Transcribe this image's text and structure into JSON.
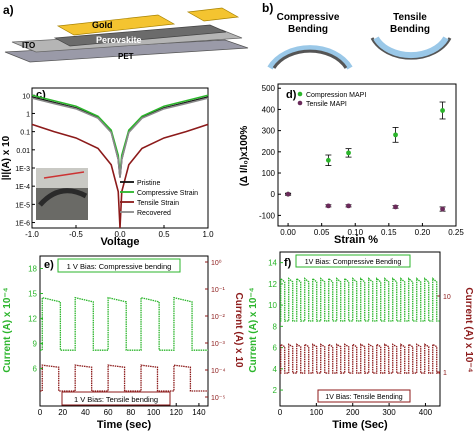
{
  "panels": {
    "a": {
      "letter": "a)",
      "layers": {
        "gold": "Gold",
        "perovskite": "Perovskite",
        "ito": "ITO",
        "pet": "PET"
      }
    },
    "b": {
      "letter": "b)",
      "compressive": [
        "Compressive",
        "Bending"
      ],
      "tensile": [
        "Tensile",
        "Bending"
      ]
    },
    "c": {
      "letter": "c)"
    },
    "d": {
      "letter": "d)"
    },
    "e": {
      "letter": "e)"
    },
    "f": {
      "letter": "f)"
    }
  },
  "colors": {
    "green": "#2bb52b",
    "maroon": "#8c1a1a",
    "gray": "#8a8a8a",
    "black": "#111111",
    "purple": "#6a2a5a",
    "gold": "#f4c430",
    "perovskite": "#6b6b6b",
    "ito": "#b5b5b5",
    "pet": "#9a9aa8"
  },
  "chart_data": [
    {
      "id": "c",
      "type": "line",
      "xlabel": "Voltage",
      "ylabel": "|I|(A) x 10",
      "x_ticks": [
        "-1.0",
        "-0.5",
        "0.0",
        "0.5",
        "1.0"
      ],
      "xlim": [
        -1.0,
        1.0
      ],
      "y_scale": "log",
      "y_ticks": [
        "1E-6",
        "1E-5",
        "1E-4",
        "1E-3",
        "0.01",
        "0.1",
        "1",
        "10"
      ],
      "ylim_exponent": [
        -6.3,
        1.4
      ],
      "legend": {
        "position": "bottom-right",
        "entries": [
          "Pristine",
          "Compressive Strain",
          "Tensile Strain",
          "Recovered"
        ]
      },
      "series": [
        {
          "name": "Pristine",
          "color": "black",
          "x": [
            -1.0,
            -0.75,
            -0.5,
            -0.25,
            -0.1,
            -0.02,
            0.0,
            0.02,
            0.1,
            0.25,
            0.5,
            0.75,
            1.0
          ],
          "y": [
            8.0,
            4.0,
            2.0,
            0.6,
            0.1,
            0.003,
            0.0003,
            0.003,
            0.1,
            0.6,
            2.0,
            4.0,
            8.0
          ]
        },
        {
          "name": "Compressive Strain",
          "color": "green",
          "x": [
            -1.0,
            -0.75,
            -0.5,
            -0.25,
            -0.1,
            -0.02,
            0.0,
            0.02,
            0.1,
            0.25,
            0.5,
            0.75,
            1.0
          ],
          "y": [
            10.0,
            5.0,
            2.5,
            0.7,
            0.12,
            0.005,
            0.0005,
            0.005,
            0.12,
            0.7,
            2.5,
            5.0,
            10.0
          ]
        },
        {
          "name": "Tensile Strain",
          "color": "maroon",
          "x": [
            -1.0,
            -0.75,
            -0.5,
            -0.25,
            -0.1,
            -0.02,
            0.0,
            0.02,
            0.1,
            0.25,
            0.5,
            0.75,
            1.0
          ],
          "y": [
            0.25,
            0.1,
            0.045,
            0.012,
            0.0015,
            5e-05,
            5e-07,
            5e-05,
            0.0015,
            0.012,
            0.045,
            0.1,
            0.25
          ]
        },
        {
          "name": "Recovered",
          "color": "gray",
          "x": [
            -1.0,
            -0.75,
            -0.5,
            -0.25,
            -0.1,
            -0.02,
            0.0,
            0.02,
            0.1,
            0.25,
            0.5,
            0.75,
            1.0
          ],
          "y": [
            7.0,
            3.5,
            1.8,
            0.55,
            0.09,
            0.003,
            0.0003,
            0.003,
            0.09,
            0.55,
            1.8,
            3.5,
            7.0
          ]
        }
      ]
    },
    {
      "id": "d",
      "type": "scatter",
      "xlabel": "Strain %",
      "ylabel": "(Δ I/I₀)x100%",
      "x_ticks": [
        "0.00",
        "0.05",
        "0.10",
        "0.15",
        "0.20",
        "0.25"
      ],
      "xlim": [
        -0.015,
        0.25
      ],
      "y_ticks": [
        "-100",
        "0",
        "100",
        "200",
        "300",
        "400",
        "500"
      ],
      "ylim": [
        -150,
        520
      ],
      "legend": {
        "position": "top-left",
        "entries": [
          "Compression MAPI",
          "Tensile MAPI"
        ]
      },
      "series": [
        {
          "name": "Compression MAPI",
          "color": "green",
          "x": [
            0.0,
            0.06,
            0.09,
            0.16,
            0.23
          ],
          "y": [
            0,
            160,
            195,
            280,
            395
          ],
          "err": [
            5,
            25,
            20,
            35,
            40
          ]
        },
        {
          "name": "Tensile MAPI",
          "color": "purple",
          "x": [
            0.0,
            0.06,
            0.09,
            0.16,
            0.23
          ],
          "y": [
            0,
            -55,
            -55,
            -60,
            -70
          ],
          "err": [
            3,
            5,
            5,
            6,
            10
          ]
        }
      ]
    },
    {
      "id": "e",
      "type": "line",
      "xlabel": "Time (sec)",
      "ylabel_left": "Current (A) x 10⁻⁴",
      "ylabel_right": "Current (A) x 10",
      "x_ticks": [
        "0",
        "20",
        "40",
        "60",
        "80",
        "100",
        "120",
        "140"
      ],
      "xlim": [
        0,
        148
      ],
      "y_left_ticks": [
        "6",
        "9",
        "12",
        "15",
        "18"
      ],
      "y_right_ticks": [
        "10⁰",
        "10⁻¹",
        "10⁻²",
        "10⁻³",
        "10⁻⁴",
        "10⁻⁵"
      ],
      "annotations": [
        "1 V Bias: Compressive bending",
        "1 V Bias: Tensile bending"
      ],
      "series": [
        {
          "name": "Compressive",
          "color": "green",
          "period_sec": 29,
          "on_fraction": 0.55,
          "on_level": 14.5,
          "off_level": 8.2,
          "axis": "left"
        },
        {
          "name": "Tensile",
          "color": "maroon",
          "period_sec": 29,
          "on_fraction": 0.5,
          "on_level": 6.4,
          "off_level": 3.3,
          "axis": "left"
        }
      ]
    },
    {
      "id": "f",
      "type": "line",
      "xlabel": "Time (Sec)",
      "ylabel_left": "Current (A) x 10⁻⁴",
      "ylabel_right": "Current (A) x 10⁻⁴",
      "x_ticks": [
        "0",
        "100",
        "200",
        "300",
        "400"
      ],
      "xlim": [
        0,
        440
      ],
      "y_left_ticks": [
        "2",
        "4",
        "6",
        "8",
        "10",
        "12",
        "14"
      ],
      "y_right_ticks": [
        "1",
        "10"
      ],
      "annotations": [
        "1V Bias: Compressive Bending",
        "1V Bias: Tensile Bending"
      ],
      "series": [
        {
          "name": "Compressive",
          "color": "green",
          "period_sec": 22,
          "on_fraction": 0.5,
          "on_level": 12.5,
          "off_level": 8.5,
          "axis": "left"
        },
        {
          "name": "Tensile",
          "color": "maroon",
          "period_sec": 22,
          "on_fraction": 0.5,
          "on_level": 6.3,
          "off_level": 3.6,
          "axis": "left"
        }
      ]
    }
  ]
}
